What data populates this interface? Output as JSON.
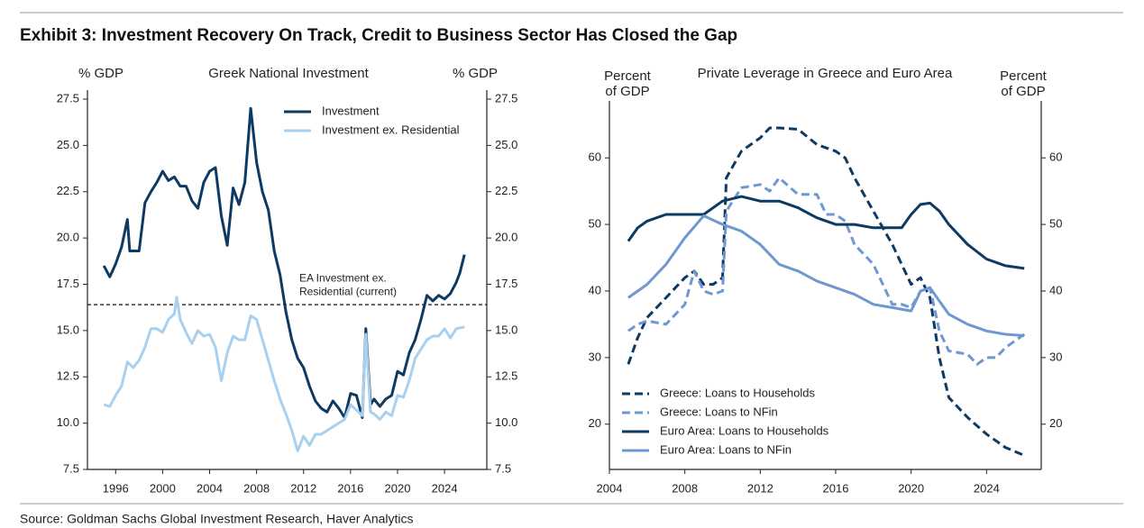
{
  "title": "Exhibit 3: Investment Recovery On Track, Credit to Business Sector Has Closed the Gap",
  "source": "Source: Goldman Sachs Global Investment Research, Haver Analytics",
  "chart_data": [
    {
      "type": "line",
      "title": "Greek National Investment",
      "ylabel": [
        "% GDP"
      ],
      "y2label": [
        "% GDP"
      ],
      "xlim": [
        1993.6,
        2027.6
      ],
      "xticks": [
        1996,
        2000,
        2004,
        2008,
        2012,
        2016,
        2020,
        2024
      ],
      "ylim": [
        7.5,
        27.5
      ],
      "y2lim": [
        7.5,
        27.5
      ],
      "yticks": [
        7.5,
        {
          "value": 10,
          "label": "10.0"
        },
        12.5,
        {
          "value": 15,
          "label": "15.0"
        },
        17.5,
        {
          "value": 20,
          "label": "20.0"
        },
        22.5,
        {
          "value": 25,
          "label": "25.0"
        },
        27.5
      ],
      "y2ticks": [
        7.5,
        {
          "value": 10,
          "label": "10.0"
        },
        12.5,
        {
          "value": 15,
          "label": "15.0"
        },
        17.5,
        {
          "value": 20,
          "label": "20.0"
        },
        22.5,
        {
          "value": 25,
          "label": "25.0"
        },
        27.5
      ],
      "legend": "upper right",
      "reference_line": {
        "value": 16.4,
        "label": [
          "EA Investment ex.",
          "Residential (current)"
        ]
      },
      "series": [
        {
          "name": "Investment",
          "color": "#0d3a63",
          "dashed": false,
          "x": [
            1995,
            1995.5,
            1996,
            1996.5,
            1997,
            1997.2,
            1998,
            1998.5,
            1999,
            1999.5,
            2000,
            2000.5,
            2001,
            2001.5,
            2002,
            2002.5,
            2003,
            2003.5,
            2004,
            2004.5,
            2005,
            2005.5,
            2006,
            2006.5,
            2007,
            2007.5,
            2008,
            2008.5,
            2009,
            2009.5,
            2010,
            2010.5,
            2011,
            2011.5,
            2012,
            2012.5,
            2013,
            2013.5,
            2014,
            2014.5,
            2015,
            2015.5,
            2016,
            2016.5,
            2017,
            2017.3,
            2017.7,
            2018,
            2018.5,
            2019,
            2019.5,
            2020,
            2020.5,
            2021,
            2021.5,
            2022,
            2022.5,
            2023,
            2023.5,
            2024,
            2024.5,
            2025,
            2025.3,
            2025.7
          ],
          "values": [
            18.5,
            17.9,
            18.6,
            19.5,
            21,
            19.3,
            19.3,
            21.9,
            22.5,
            23,
            23.6,
            23.1,
            23.3,
            22.8,
            22.8,
            22,
            21.6,
            23,
            23.6,
            23.8,
            21.2,
            19.6,
            22.7,
            21.8,
            23,
            27,
            24.1,
            22.5,
            21.5,
            19.3,
            18,
            16,
            14.5,
            13.5,
            13,
            12,
            11.2,
            10.8,
            10.6,
            11.2,
            10.8,
            10.3,
            11.6,
            11.5,
            10.3,
            15.1,
            11,
            11.3,
            10.9,
            11.3,
            11.5,
            12.8,
            12.6,
            13.8,
            14.5,
            15.6,
            16.9,
            16.6,
            16.9,
            16.7,
            17,
            17.6,
            18.1,
            19.1
          ]
        },
        {
          "name": "Investment ex. Residential",
          "color": "#a9d0ee",
          "dashed": false,
          "x": [
            1995,
            1995.5,
            1996,
            1996.5,
            1997,
            1997.5,
            1998,
            1998.5,
            1999,
            1999.5,
            2000,
            2000.5,
            2001,
            2001.2,
            2001.5,
            2002,
            2002.5,
            2003,
            2003.5,
            2004,
            2004.5,
            2005,
            2005.5,
            2006,
            2006.5,
            2007,
            2007.5,
            2008,
            2008.5,
            2009,
            2009.5,
            2010,
            2010.5,
            2011,
            2011.5,
            2012,
            2012.5,
            2013,
            2013.5,
            2014,
            2014.5,
            2015,
            2015.5,
            2016,
            2016.5,
            2017,
            2017.3,
            2017.7,
            2018,
            2018.5,
            2019,
            2019.5,
            2020,
            2020.5,
            2021,
            2021.5,
            2022,
            2022.5,
            2023,
            2023.5,
            2024,
            2024.5,
            2025,
            2025.7
          ],
          "values": [
            11,
            10.9,
            11.5,
            12,
            13.3,
            13,
            13.4,
            14.1,
            15.1,
            15.1,
            14.9,
            15.6,
            15.9,
            16.8,
            15.6,
            14.9,
            14.3,
            15,
            14.7,
            14.8,
            14.1,
            12.3,
            13.8,
            14.7,
            14.5,
            14.5,
            15.8,
            15.6,
            14.5,
            13.4,
            12.3,
            11.3,
            10.5,
            9.6,
            8.5,
            9.3,
            8.8,
            9.4,
            9.4,
            9.6,
            9.8,
            10,
            10.2,
            11,
            10.7,
            10.4,
            14.8,
            10.6,
            10.5,
            10.2,
            10.6,
            10.4,
            11.5,
            11.4,
            12.3,
            13.5,
            14,
            14.5,
            14.7,
            14.7,
            15.1,
            14.6,
            15.1,
            15.2
          ]
        }
      ]
    },
    {
      "type": "line",
      "title": "Private Leverage in Greece and Euro Area",
      "ylabel": [
        "Percent",
        "of GDP"
      ],
      "y2label": [
        "Percent",
        "of GDP"
      ],
      "xlim": [
        2004,
        2026.9
      ],
      "xticks": [
        2004,
        2008,
        2012,
        2016,
        2020,
        2024
      ],
      "ylim": [
        13.2,
        67.2
      ],
      "y2lim": [
        13.2,
        67.2
      ],
      "yticks": [
        20,
        30,
        40,
        50,
        60
      ],
      "y2ticks": [
        20,
        30,
        40,
        50,
        60
      ],
      "legend": "lower left",
      "series": [
        {
          "name": "Greece: Loans to Households",
          "color": "#0d3a63",
          "dashed": true,
          "x": [
            2005,
            2005.5,
            2006,
            2007,
            2008,
            2008.5,
            2009,
            2009.5,
            2010,
            2010.2,
            2011,
            2012,
            2012.5,
            2013,
            2014,
            2015,
            2016,
            2016.5,
            2017,
            2018,
            2019,
            2019.5,
            2020,
            2020.5,
            2021,
            2021.5,
            2022,
            2023,
            2024,
            2025,
            2026
          ],
          "values": [
            29,
            33,
            36,
            39,
            42,
            43,
            41,
            41,
            42,
            57,
            61,
            63,
            64.5,
            64.5,
            64.3,
            62,
            61,
            60,
            57,
            52,
            47,
            44,
            41,
            42,
            39,
            30,
            24,
            21,
            18.5,
            16.5,
            15.3
          ]
        },
        {
          "name": "Greece: Loans to NFin",
          "color": "#6e98cf",
          "dashed": true,
          "x": [
            2005,
            2005.5,
            2006,
            2007,
            2008,
            2008.5,
            2009,
            2009.5,
            2010,
            2010.2,
            2011,
            2012,
            2012.5,
            2013,
            2014,
            2015,
            2015.5,
            2016,
            2016.5,
            2017,
            2018,
            2019,
            2019.5,
            2020,
            2020.5,
            2021,
            2021.5,
            2022,
            2023,
            2023.5,
            2024,
            2024.5,
            2025,
            2026
          ],
          "values": [
            34,
            35,
            35.5,
            35,
            38,
            43,
            40,
            39.5,
            40,
            52,
            55.5,
            56,
            55,
            57,
            54.5,
            54.5,
            51.5,
            51.5,
            50.5,
            47,
            44,
            38,
            38,
            37.5,
            40,
            40.5,
            34,
            31,
            30.5,
            29,
            30,
            30,
            31.5,
            33.5
          ]
        },
        {
          "name": "Euro Area: Loans to Households",
          "color": "#0d3a63",
          "dashed": false,
          "x": [
            2005,
            2005.5,
            2006,
            2007,
            2008,
            2009,
            2010,
            2011,
            2012,
            2013,
            2014,
            2015,
            2016,
            2017,
            2018,
            2019,
            2019.5,
            2020,
            2020.5,
            2021,
            2021.5,
            2022,
            2023,
            2024,
            2025,
            2026
          ],
          "values": [
            47.5,
            49.5,
            50.5,
            51.5,
            51.5,
            51.5,
            53.5,
            54.2,
            53.5,
            53.5,
            52.5,
            51,
            50,
            50,
            49.5,
            49.5,
            49.5,
            51.5,
            53,
            53.2,
            52,
            50,
            47,
            44.8,
            43.8,
            43.4
          ]
        },
        {
          "name": "Euro Area: Loans to NFin",
          "color": "#6e98cf",
          "dashed": false,
          "x": [
            2005,
            2005.5,
            2006,
            2007,
            2008,
            2009,
            2010,
            2011,
            2012,
            2013,
            2014,
            2015,
            2016,
            2017,
            2018,
            2019,
            2020,
            2020.5,
            2021,
            2021.5,
            2022,
            2023,
            2024,
            2025,
            2026
          ],
          "values": [
            39,
            40,
            41,
            44,
            48,
            51.3,
            50,
            49,
            47,
            44,
            43,
            41.5,
            40.5,
            39.5,
            38,
            37.5,
            37,
            40,
            40.5,
            38.5,
            36.5,
            35,
            34,
            33.5,
            33.3
          ]
        }
      ]
    }
  ]
}
